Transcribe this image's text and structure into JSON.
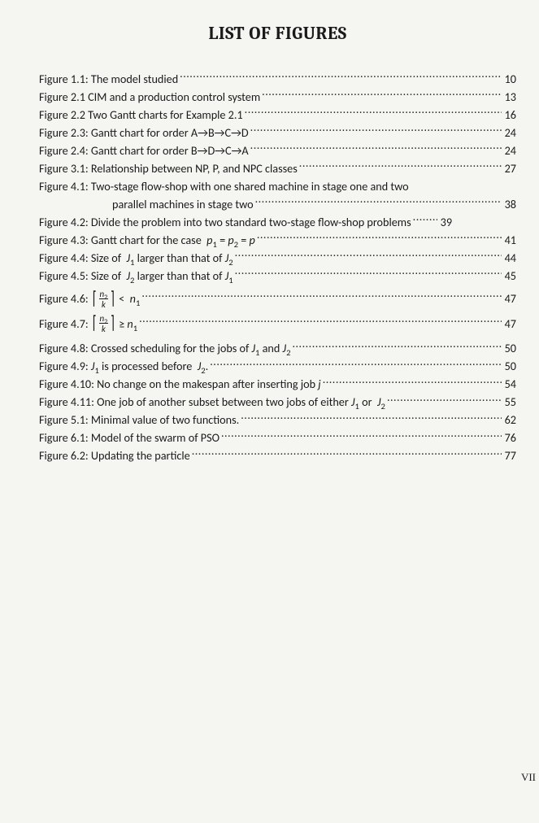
{
  "title": "LIST OF FIGURES",
  "entries": [
    {
      "label_html": "Figure 1.1: The model studied",
      "page": "10"
    },
    {
      "label_html": "Figure 2.1 CIM and a production control system",
      "page": "13"
    },
    {
      "label_html": "Figure 2.2 Two Gantt charts for Example 2.1",
      "page": "16"
    },
    {
      "label_html": "Figure 2.3: Gantt chart for order A→B→C→D",
      "page": "24"
    },
    {
      "label_html": "Figure 2.4: Gantt chart for order B→D→C→A",
      "page": "24"
    },
    {
      "label_html": "Figure 3.1: Relationship between NP, P, and NPC classes",
      "page": "27"
    },
    {
      "wrap": true,
      "first": "Figure 4.1: Two-stage flow-shop with one shared machine in stage one and two",
      "second": "parallel machines in stage two",
      "page": "38"
    },
    {
      "label_html": "Figure 4.2: Divide the problem into two standard two-stage flow-shop problems",
      "page": "39",
      "dots_short": true
    },
    {
      "label_html": "Figure 4.3: Gantt chart for the case &nbsp;<span class=\"ital\">p</span><sub>1</sub> = <span class=\"ital\">p</span><sub>2</sub> = <span class=\"ital\">p</span>",
      "page": "41"
    },
    {
      "label_html": "Figure 4.4: Size of &nbsp;<span class=\"ital\">J</span><sub>1</sub> larger than that of <span class=\"ital\">J</span><sub>2</sub>",
      "page": "44"
    },
    {
      "label_html": "Figure 4.5: Size of &nbsp;<span class=\"ital\">J</span><sub>2</sub> larger than that of <span class=\"ital\">J</span><sub>1</sub>",
      "page": "45"
    },
    {
      "label_html": "Figure 4.6: <span class=\"bracket-l\">⌈</span><span class=\"math-frac\"><span class=\"num\"><span class=\"ital\">n</span><sub>2</sub></span><span class=\"den\"><span class=\"ital\">k</span></span></span><span class=\"bracket-r\">⌉</span> &lt; &nbsp;<span class=\"ital\">n</span><sub>1</sub>",
      "page": "47",
      "tall": true
    },
    {
      "label_html": "Figure 4.7: <span class=\"bracket-l\">⌈</span><span class=\"math-frac\"><span class=\"num\"><span class=\"ital\">n</span><sub>2</sub></span><span class=\"den\"><span class=\"ital\">k</span></span></span><span class=\"bracket-r\">⌉</span> ≥ <span class=\"ital\">n</span><sub>1</sub>",
      "page": "47",
      "tall": true
    },
    {
      "label_html": "Figure 4.8: Crossed scheduling for the jobs of <span class=\"ital\">J</span><sub>1</sub> and <span class=\"ital\">J</span><sub>2</sub>",
      "page": "50"
    },
    {
      "label_html": "Figure 4.9: <span class=\"ital\">J</span><sub>1</sub> is processed before &nbsp;<span class=\"ital\">J</span><sub>2</sub>.",
      "page": "50"
    },
    {
      "label_html": "Figure 4.10: No change on the makespan after inserting job <span class=\"ital\">j</span>",
      "page": "54"
    },
    {
      "label_html": "Figure 4.11: One job of another subset between two jobs of either <span class=\"ital\">J</span><sub>1</sub> or &nbsp;<span class=\"ital\">J</span><sub>2</sub>",
      "page": "55"
    },
    {
      "label_html": "Figure 5.1: Minimal value of two functions.",
      "page": "62"
    },
    {
      "label_html": "Figure 6.1: Model of the swarm of PSO",
      "page": "76"
    },
    {
      "label_html": "Figure 6.2: Updating the particle",
      "page": "77"
    }
  ],
  "footer": "VII",
  "colors": {
    "bg": "#f5f5f1",
    "text": "#1a1a1a"
  },
  "typography": {
    "title_fontsize": 22,
    "body_fontsize": 14.2,
    "line_height": 1.55,
    "title_font": "Cambria serif bold",
    "body_font": "Calibri sans"
  }
}
